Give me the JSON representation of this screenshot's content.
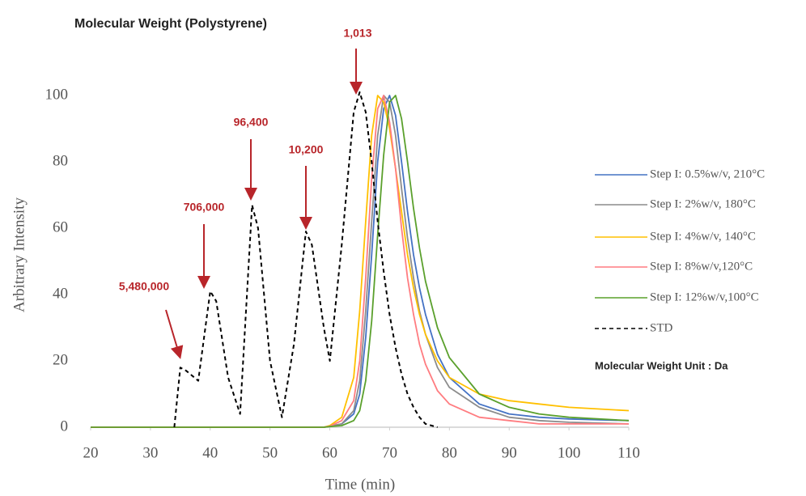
{
  "chart_data": {
    "type": "line",
    "title": "Molecular Weight (Polystyrene)",
    "x_label": "Time (min)",
    "y_label": "Arbitrary Intensity",
    "unit_note": "Molecular Weight Unit : Da",
    "annotations": [
      "5,480,000",
      "706,000",
      "96,400",
      "10,200",
      "1,013"
    ],
    "annotation_color": "#b8252a",
    "x": [
      20,
      30,
      34,
      35,
      36,
      38,
      40,
      41,
      43,
      45,
      47,
      48,
      50,
      52,
      54,
      56,
      57,
      59,
      60,
      62,
      64,
      65,
      66,
      67,
      68,
      69,
      70,
      71,
      72,
      73,
      74,
      75,
      76,
      78,
      80,
      85,
      90,
      95,
      100,
      110
    ],
    "series": [
      {
        "name": "Step I: 0.5%w/v, 210°C",
        "color": "#4472c4",
        "dashed": false,
        "values": [
          0,
          0,
          0,
          0,
          0,
          0,
          0,
          0,
          0,
          0,
          0,
          0,
          0,
          0,
          0,
          0,
          0,
          0,
          0.3,
          1,
          4,
          10,
          27,
          52,
          80,
          96,
          100,
          94,
          80,
          65,
          52,
          42,
          34,
          22,
          15,
          7,
          4,
          3,
          2.5,
          2
        ]
      },
      {
        "name": "Step I: 2%w/v, 180°C",
        "color": "#8c8c8c",
        "dashed": false,
        "values": [
          0,
          0,
          0,
          0,
          0,
          0,
          0,
          0,
          0,
          0,
          0,
          0,
          0,
          0,
          0,
          0,
          0,
          0,
          0.3,
          1,
          5,
          14,
          35,
          62,
          88,
          100,
          98,
          88,
          72,
          57,
          45,
          35,
          28,
          18,
          12,
          6,
          3,
          2,
          1.5,
          1
        ]
      },
      {
        "name": "Step I: 4%w/v, 140°C",
        "color": "#ffc000",
        "dashed": false,
        "values": [
          0,
          0,
          0,
          0,
          0,
          0,
          0,
          0,
          0,
          0,
          0,
          0,
          0,
          0,
          0,
          0,
          0,
          0,
          0.5,
          3,
          15,
          35,
          62,
          88,
          100,
          98,
          90,
          78,
          65,
          52,
          42,
          34,
          28,
          20,
          15,
          10,
          8,
          7,
          6,
          5
        ]
      },
      {
        "name": "Step I: 8%w/v,120°C",
        "color": "#ff7c80",
        "dashed": false,
        "values": [
          0,
          0,
          0,
          0,
          0,
          0,
          0,
          0,
          0,
          0,
          0,
          0,
          0,
          0,
          0,
          0,
          0,
          0,
          0.3,
          2,
          8,
          20,
          45,
          75,
          96,
          100,
          92,
          78,
          60,
          45,
          34,
          25,
          19,
          11,
          7,
          3,
          2,
          1,
          1,
          1
        ]
      },
      {
        "name": "Step I: 12%w/v,100°C",
        "color": "#5aa02c",
        "dashed": false,
        "values": [
          0,
          0,
          0,
          0,
          0,
          0,
          0,
          0,
          0,
          0,
          0,
          0,
          0,
          0,
          0,
          0,
          0,
          0,
          0.2,
          0.5,
          2,
          5,
          14,
          32,
          58,
          82,
          98,
          100,
          93,
          80,
          66,
          54,
          44,
          30,
          21,
          10,
          6,
          4,
          3,
          2
        ]
      },
      {
        "name": "STD",
        "color": "#000000",
        "dashed": true,
        "values": [
          null,
          null,
          0,
          18,
          17,
          14,
          41,
          38,
          15,
          4,
          67,
          60,
          20,
          3,
          25,
          59,
          55,
          30,
          20,
          55,
          95,
          101,
          95,
          80,
          62,
          47,
          34,
          24,
          16,
          10,
          6,
          3,
          1,
          0,
          null,
          null,
          null,
          null,
          null,
          null
        ]
      }
    ],
    "xlim": [
      20,
      110
    ],
    "xticks": [
      20,
      30,
      40,
      50,
      60,
      70,
      80,
      90,
      100,
      110
    ],
    "ylim": [
      0,
      100
    ],
    "yticks": [
      0,
      20,
      40,
      60,
      80,
      100
    ],
    "grid": false
  }
}
